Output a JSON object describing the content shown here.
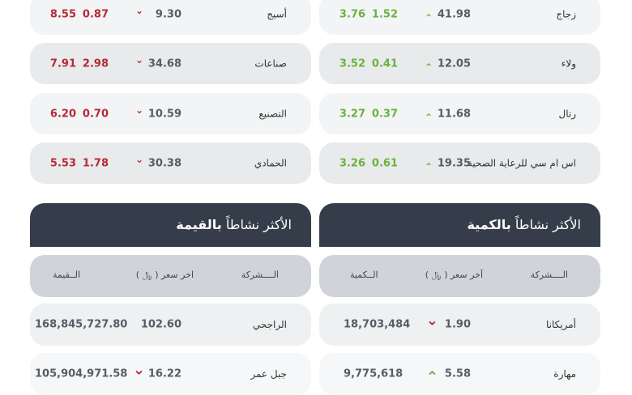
{
  "colors": {
    "up": "#6ab23f",
    "down": "#b52a35",
    "header_bg": "#363d4a"
  },
  "left_movers": [
    {
      "name": "أسيج",
      "price": "9.30",
      "dir": "down",
      "change": "0.87",
      "percent": "8.55"
    },
    {
      "name": "صناعات",
      "price": "34.68",
      "dir": "down",
      "change": "2.98",
      "percent": "7.91"
    },
    {
      "name": "التصنيع",
      "price": "10.59",
      "dir": "down",
      "change": "0.70",
      "percent": "6.20"
    },
    {
      "name": "الحمادي",
      "price": "30.38",
      "dir": "down",
      "change": "1.78",
      "percent": "5.53"
    }
  ],
  "right_movers": [
    {
      "name": "زجاج",
      "price": "41.98",
      "dir": "up",
      "change": "1.52",
      "percent": "3.76"
    },
    {
      "name": "ولاء",
      "price": "12.05",
      "dir": "up",
      "change": "0.41",
      "percent": "3.52"
    },
    {
      "name": "رتال",
      "price": "11.68",
      "dir": "up",
      "change": "0.37",
      "percent": "3.27"
    },
    {
      "name": "اس ام سي للرعاية الصحية",
      "price": "19.35",
      "dir": "up",
      "change": "0.61",
      "percent": "3.26"
    }
  ],
  "by_value": {
    "title_prefix": "الأكثر نشاطاً",
    "title_bold": "بالقيمة",
    "columns": [
      "الــــشركة",
      "اخر سعر ( ﷼ )",
      "الــقيمة"
    ],
    "rows": [
      {
        "name": "الراجحي",
        "price": "102.60",
        "dir": "",
        "value": "168,845,727.80"
      },
      {
        "name": "جبل عمر",
        "price": "16.22",
        "dir": "down",
        "value": "105,904,971.58"
      }
    ]
  },
  "by_volume": {
    "title_prefix": "الأكثر نشاطاً",
    "title_bold": "بالكمية",
    "columns": [
      "الــــشركة",
      "آخر سعر ( ﷼ )",
      "الــكمية"
    ],
    "rows": [
      {
        "name": "أمريكانا",
        "price": "1.90",
        "dir": "down",
        "value": "18,703,484"
      },
      {
        "name": "مهارة",
        "price": "5.58",
        "dir": "up",
        "value": "9,775,618"
      }
    ]
  }
}
